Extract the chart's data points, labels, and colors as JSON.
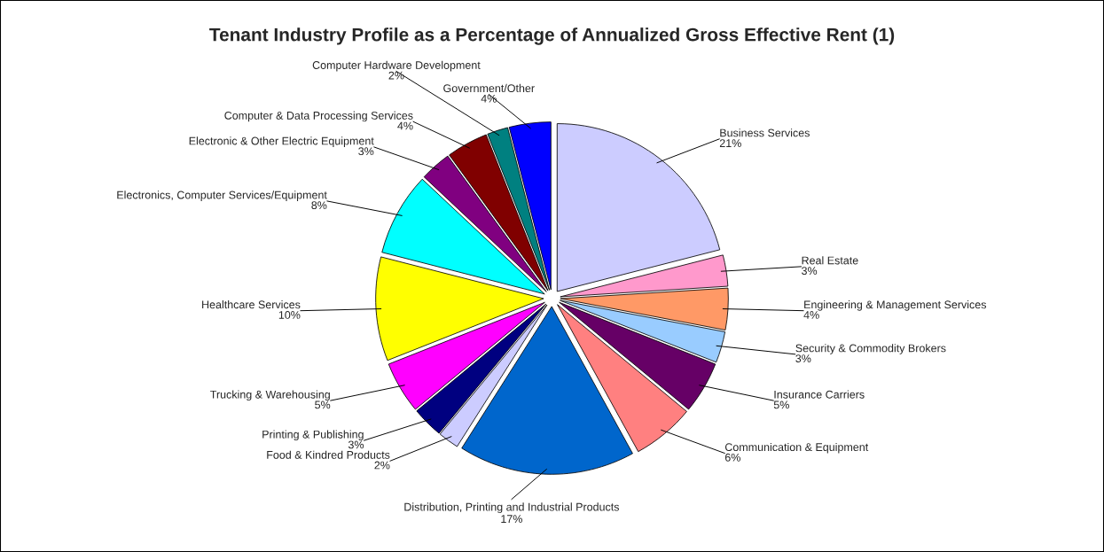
{
  "chart_data": {
    "type": "pie",
    "title": "Tenant Industry Profile as a Percentage of Annualized Gross Effective Rent (1)",
    "categories": [
      "Business Services",
      "Real Estate",
      "Engineering & Management Services",
      "Security & Commodity Brokers",
      "Insurance Carriers",
      "Communication & Equipment",
      "Distribution, Printing and Industrial Products",
      "Food & Kindred Products",
      "Printing & Publishing",
      "Trucking & Warehousing",
      "Healthcare Services",
      "Electronics, Computer Services/Equipment",
      "Electronic & Other Electric Equipment",
      "Computer & Data Processing Services",
      "Computer Hardware Development",
      "Government/Other"
    ],
    "values": [
      21,
      3,
      4,
      3,
      5,
      6,
      17,
      2,
      3,
      5,
      10,
      8,
      3,
      4,
      2,
      4
    ],
    "colors": [
      "#ccccff",
      "#ff99cc",
      "#ff9966",
      "#99ccff",
      "#660066",
      "#ff8080",
      "#0066cc",
      "#ccccff",
      "#000080",
      "#ff00ff",
      "#ffff00",
      "#00ffff",
      "#800080",
      "#800000",
      "#008080",
      "#0000ff"
    ],
    "value_labels": [
      "21%",
      "3%",
      "4%",
      "3%",
      "5%",
      "6%",
      "17%",
      "2%",
      "3%",
      "5%",
      "10%",
      "8%",
      "3%",
      "4%",
      "2%",
      "4%"
    ],
    "legend": false
  }
}
